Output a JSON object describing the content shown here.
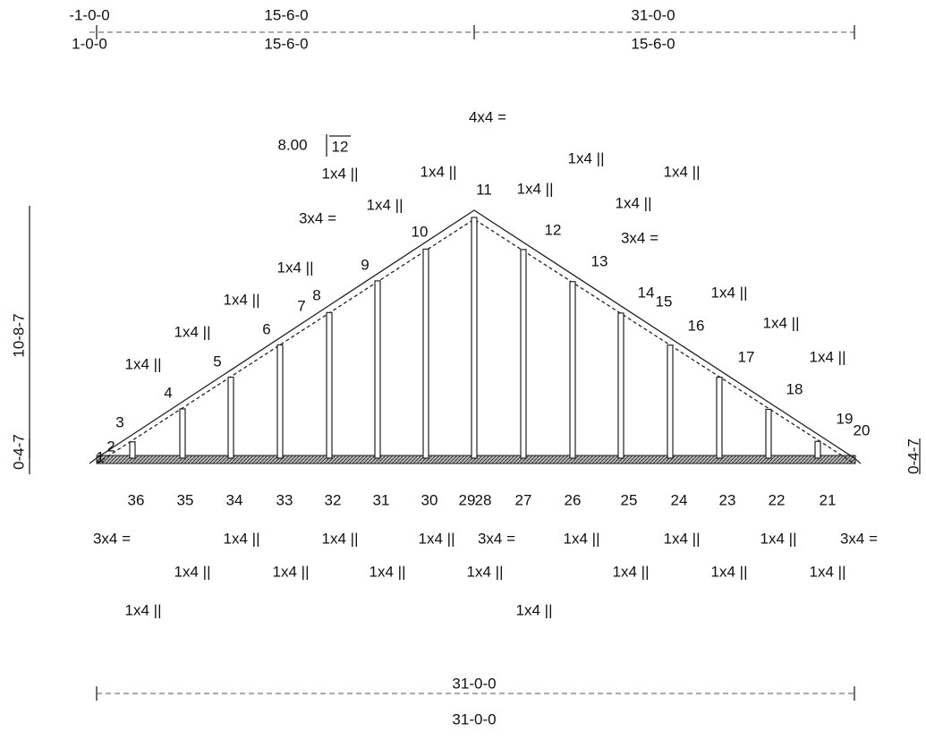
{
  "dimensions": {
    "top_row1": [
      "-1-0-0",
      "15-6-0",
      "31-0-0"
    ],
    "top_row2": [
      "1-0-0",
      "15-6-0",
      "15-6-0"
    ],
    "height": "10-8-7",
    "left_heel": "0-4-7",
    "right_heel": "0-4-7",
    "bottom_row1": "31-0-0",
    "bottom_row2": "31-0-0"
  },
  "pitch": {
    "rise": "8.00",
    "run": "12"
  },
  "plates": [
    "4x4 =",
    "1x4 ||",
    "1x4 ||",
    "1x4 ||",
    "1x4 ||",
    "1x4 ||",
    "1x4 ||",
    "1x4 ||",
    "1x4 ||",
    "1x4 ||",
    "1x4 ||",
    "1x4 ||",
    "1x4 ||",
    "1x4 ||",
    "1x4 ||",
    "3x4 =",
    "3x4 =",
    "3x4 =",
    "1x4 ||",
    "1x4 ||",
    "1x4 ||",
    "3x4 =",
    "1x4 ||",
    "1x4 ||",
    "1x4 ||",
    "3x4 =",
    "1x4 ||",
    "1x4 ||",
    "1x4 ||",
    "1x4 ||",
    "1x4 ||",
    "1x4 ||",
    "1x4 ||",
    "1x4 ||",
    "1x4 ||"
  ],
  "joints": [
    "1",
    "2",
    "3",
    "4",
    "5",
    "6",
    "7",
    "8",
    "9",
    "10",
    "11",
    "12",
    "13",
    "14",
    "15",
    "16",
    "17",
    "18",
    "19",
    "20",
    "21",
    "22",
    "23",
    "24",
    "25",
    "26",
    "27",
    "28",
    "29",
    "30",
    "31",
    "32",
    "33",
    "34",
    "35",
    "36"
  ]
}
